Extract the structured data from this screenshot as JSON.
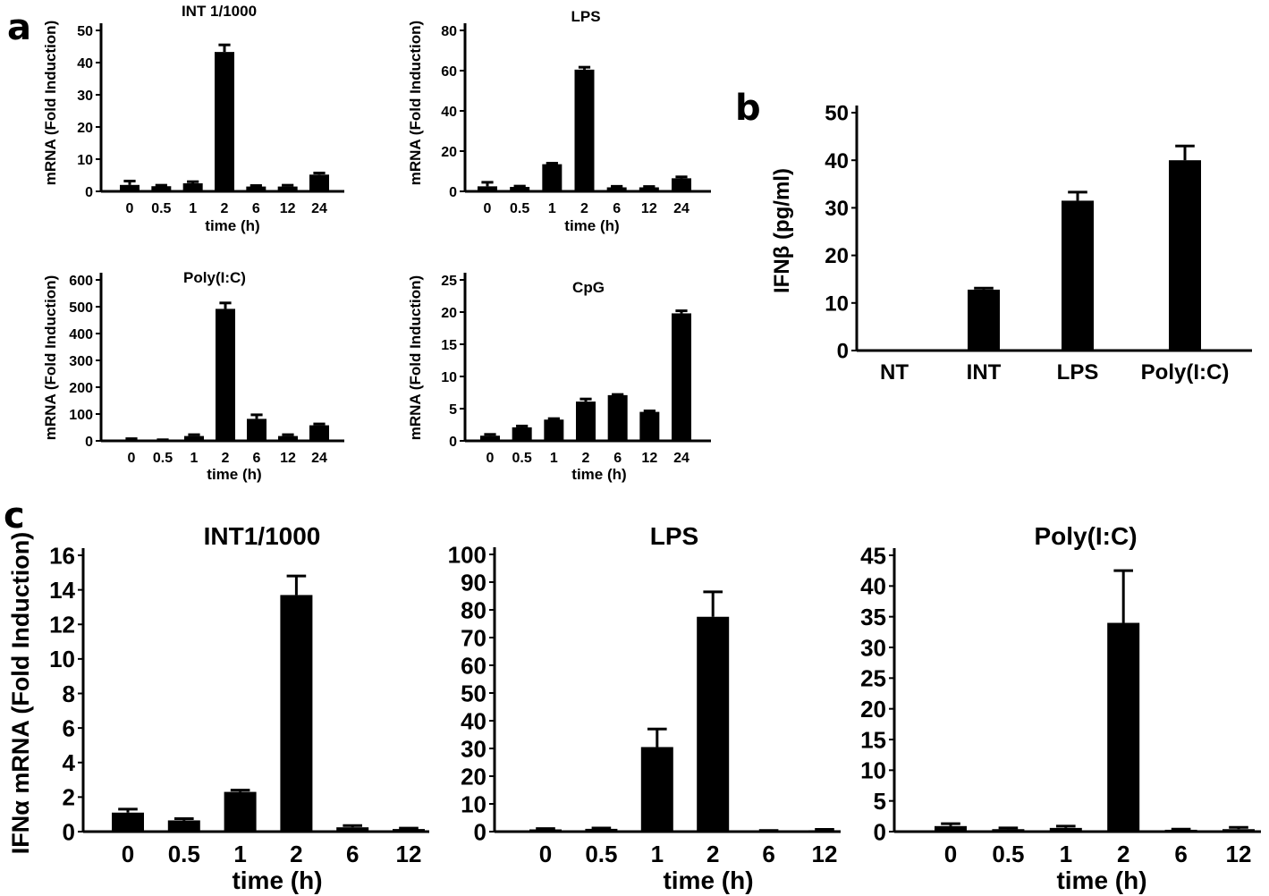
{
  "panel_labels": [
    "a",
    "b",
    "c"
  ],
  "chart_data": [
    {
      "id": "a1",
      "type": "bar",
      "title": "INT 1/1000",
      "xlabel": "time (h)",
      "ylabel": "mRNA (Fold Induction)",
      "categories": [
        "0",
        "0.5",
        "1",
        "2",
        "6",
        "12",
        "24"
      ],
      "values": [
        2,
        1.6,
        2.5,
        43.3,
        1.5,
        1.5,
        5.2
      ],
      "errors": [
        1.2,
        0.3,
        0.5,
        2.2,
        0.3,
        0.4,
        0.5
      ],
      "ylim": [
        0,
        50
      ],
      "yticks": [
        0,
        10,
        20,
        30,
        40,
        50
      ]
    },
    {
      "id": "a2",
      "type": "bar",
      "title": "LPS",
      "xlabel": "time (h)",
      "ylabel": "mRNA (Fold Induction)",
      "categories": [
        "0",
        "0.5",
        "1",
        "2",
        "6",
        "12",
        "24"
      ],
      "values": [
        2.5,
        2.2,
        13.5,
        60.5,
        2,
        2,
        6.5
      ],
      "errors": [
        2,
        0.4,
        0.5,
        1.2,
        0.5,
        0.4,
        0.7
      ],
      "ylim": [
        0,
        80
      ],
      "yticks": [
        0,
        20,
        40,
        60,
        80
      ]
    },
    {
      "id": "a3",
      "type": "bar",
      "title": "Poly(I:C)",
      "xlabel": "time (h)",
      "ylabel": "mRNA (Fold Induction)",
      "categories": [
        "0",
        "0.5",
        "1",
        "2",
        "6",
        "12",
        "24"
      ],
      "values": [
        5,
        2,
        18,
        492,
        82,
        18,
        58
      ],
      "errors": [
        3,
        2,
        5,
        22,
        15,
        5,
        5
      ],
      "ylim": [
        0,
        600
      ],
      "yticks": [
        0,
        100,
        200,
        300,
        400,
        500,
        600
      ]
    },
    {
      "id": "a4",
      "type": "bar",
      "title": "CpG",
      "xlabel": "time (h)",
      "ylabel": "mRNA (Fold Induction)",
      "categories": [
        "0",
        "0.5",
        "1",
        "2",
        "6",
        "12",
        "24"
      ],
      "values": [
        0.8,
        2.1,
        3.3,
        6.1,
        7.1,
        4.5,
        19.8
      ],
      "errors": [
        0.2,
        0.2,
        0.15,
        0.4,
        0.1,
        0.15,
        0.4
      ],
      "ylim": [
        0,
        25
      ],
      "yticks": [
        0,
        5,
        10,
        15,
        20,
        25
      ]
    },
    {
      "id": "b",
      "type": "bar",
      "title": "",
      "xlabel": "",
      "ylabel": "IFNβ (pg/ml)",
      "categories": [
        "NT",
        "INT",
        "LPS",
        "Poly(I:C)"
      ],
      "values": [
        0,
        12.8,
        31.5,
        40
      ],
      "errors": [
        0,
        0.3,
        1.8,
        3
      ],
      "ylim": [
        0,
        50
      ],
      "yticks": [
        0,
        10,
        20,
        30,
        40,
        50
      ]
    },
    {
      "id": "c1",
      "type": "bar",
      "title": "INT1/1000",
      "xlabel": "time (h)",
      "ylabel": "IFNα mRNA (Fold Induction)",
      "categories": [
        "0",
        "0.5",
        "1",
        "2",
        "6",
        "12"
      ],
      "values": [
        1.1,
        0.65,
        2.3,
        13.7,
        0.25,
        0.15
      ],
      "errors": [
        0.2,
        0.1,
        0.1,
        1.1,
        0.1,
        0.05
      ],
      "ylim": [
        0,
        16
      ],
      "yticks": [
        0,
        2,
        4,
        6,
        8,
        10,
        12,
        14,
        16
      ]
    },
    {
      "id": "c2",
      "type": "bar",
      "title": "LPS",
      "xlabel": "time (h)",
      "ylabel": "",
      "categories": [
        "0",
        "0.5",
        "1",
        "2",
        "6",
        "12"
      ],
      "values": [
        0.8,
        1,
        30.5,
        77.5,
        0.3,
        0.5
      ],
      "errors": [
        0.3,
        0.3,
        6.5,
        9,
        0.1,
        0.3
      ],
      "ylim": [
        0,
        100
      ],
      "yticks": [
        0,
        10,
        20,
        30,
        40,
        50,
        60,
        70,
        80,
        90,
        100
      ]
    },
    {
      "id": "c3",
      "type": "bar",
      "title": "Poly(I:C)",
      "xlabel": "time (h)",
      "ylabel": "",
      "categories": [
        "0",
        "0.5",
        "1",
        "2",
        "6",
        "12"
      ],
      "values": [
        0.9,
        0.4,
        0.6,
        34,
        0.3,
        0.4
      ],
      "errors": [
        0.4,
        0.2,
        0.3,
        8.5,
        0.1,
        0.3
      ],
      "ylim": [
        0,
        45
      ],
      "yticks": [
        0,
        5,
        10,
        15,
        20,
        25,
        30,
        35,
        40,
        45
      ]
    }
  ]
}
